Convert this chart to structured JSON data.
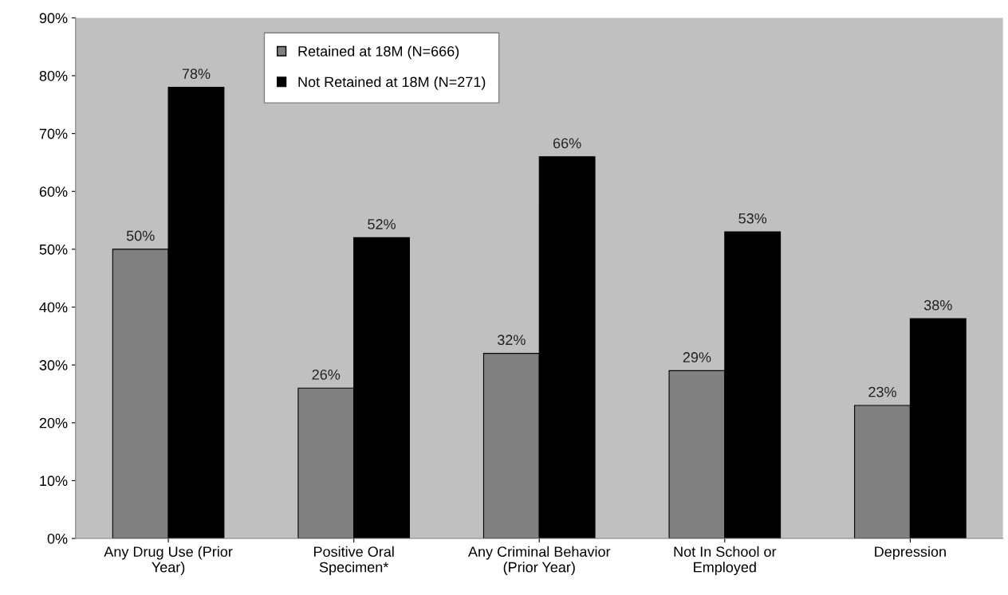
{
  "chart_data": {
    "type": "bar",
    "categories": [
      "Any Drug Use (Prior\nYear)",
      "Positive Oral\nSpecimen*",
      "Any Criminal Behavior\n(Prior Year)",
      "Not In School or\nEmployed",
      "Depression"
    ],
    "series": [
      {
        "name": "Retained at 18M (N=666)",
        "color": "#808080",
        "values": [
          50,
          26,
          32,
          29,
          23
        ],
        "value_labels": [
          "50%",
          "26%",
          "32%",
          "29%",
          "23%"
        ]
      },
      {
        "name": "Not Retained at 18M (N=271)",
        "color": "#000000",
        "values": [
          78,
          52,
          66,
          53,
          38
        ],
        "value_labels": [
          "78%",
          "52%",
          "66%",
          "53%",
          "38%"
        ]
      }
    ],
    "ylim": [
      0,
      90
    ],
    "yticks": [
      {
        "value": 0,
        "label": "0%"
      },
      {
        "value": 10,
        "label": "10%"
      },
      {
        "value": 20,
        "label": "20%"
      },
      {
        "value": 30,
        "label": "30%"
      },
      {
        "value": 40,
        "label": "40%"
      },
      {
        "value": 50,
        "label": "50%"
      },
      {
        "value": 60,
        "label": "60%"
      },
      {
        "value": 70,
        "label": "70%"
      },
      {
        "value": 80,
        "label": "80%"
      },
      {
        "value": 90,
        "label": "90%"
      }
    ],
    "grid": false,
    "legend": "top"
  }
}
